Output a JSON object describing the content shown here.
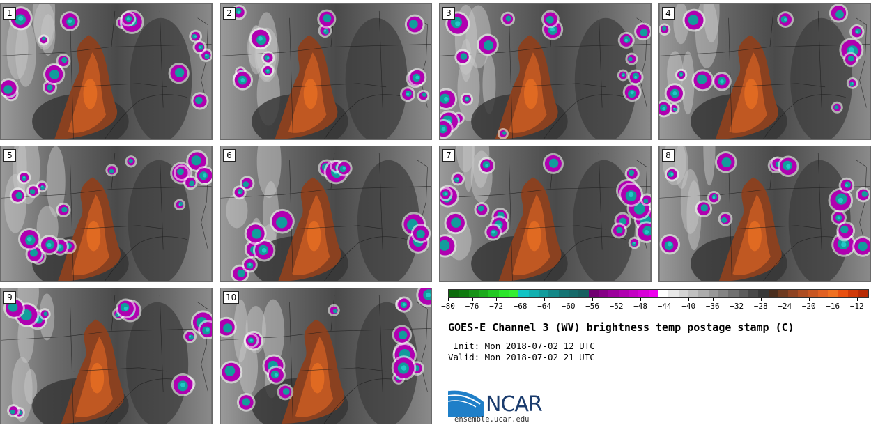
{
  "panels": [
    {
      "label": "1"
    },
    {
      "label": "2"
    },
    {
      "label": "3"
    },
    {
      "label": "4"
    },
    {
      "label": "5"
    },
    {
      "label": "6"
    },
    {
      "label": "7"
    },
    {
      "label": "8"
    },
    {
      "label": "9"
    },
    {
      "label": "10"
    }
  ],
  "colorbar": {
    "min": -80,
    "max": -10,
    "tick_labels": [
      "−80",
      "−76",
      "−72",
      "−68",
      "−64",
      "−60",
      "−56",
      "−52",
      "−48",
      "−44",
      "−40",
      "−36",
      "−32",
      "−28",
      "−24",
      "−20",
      "−16",
      "−12"
    ],
    "colors": [
      "#0b6b0b",
      "#0f7a0f",
      "#169216",
      "#1caa1c",
      "#22c822",
      "#2ae52a",
      "#33ee33",
      "#11c4c4",
      "#12b0b0",
      "#139c9c",
      "#148888",
      "#157474",
      "#166a6a",
      "#176060",
      "#700070",
      "#860086",
      "#9c009c",
      "#b000b0",
      "#c400c4",
      "#d800d8",
      "#ee00ee",
      "#ffffff",
      "#e8e8e8",
      "#d4d4d4",
      "#c0c0c0",
      "#acacac",
      "#989898",
      "#848484",
      "#707070",
      "#5c5c5c",
      "#484848",
      "#383838",
      "#4a2d1e",
      "#6e3a20",
      "#8e4322",
      "#ad4d22",
      "#c85622",
      "#e06022",
      "#f07020",
      "#e85010",
      "#d03a08",
      "#b82a04"
    ]
  },
  "title": "GOES-E Channel 3 (WV) brightness temp postage stamp (C)",
  "init_line": " Init: Mon 2018-07-02 12 UTC",
  "valid_line": "Valid: Mon 2018-07-02 21 UTC",
  "logo_text": "NCAR",
  "website": "ensemble.ucar.edu"
}
